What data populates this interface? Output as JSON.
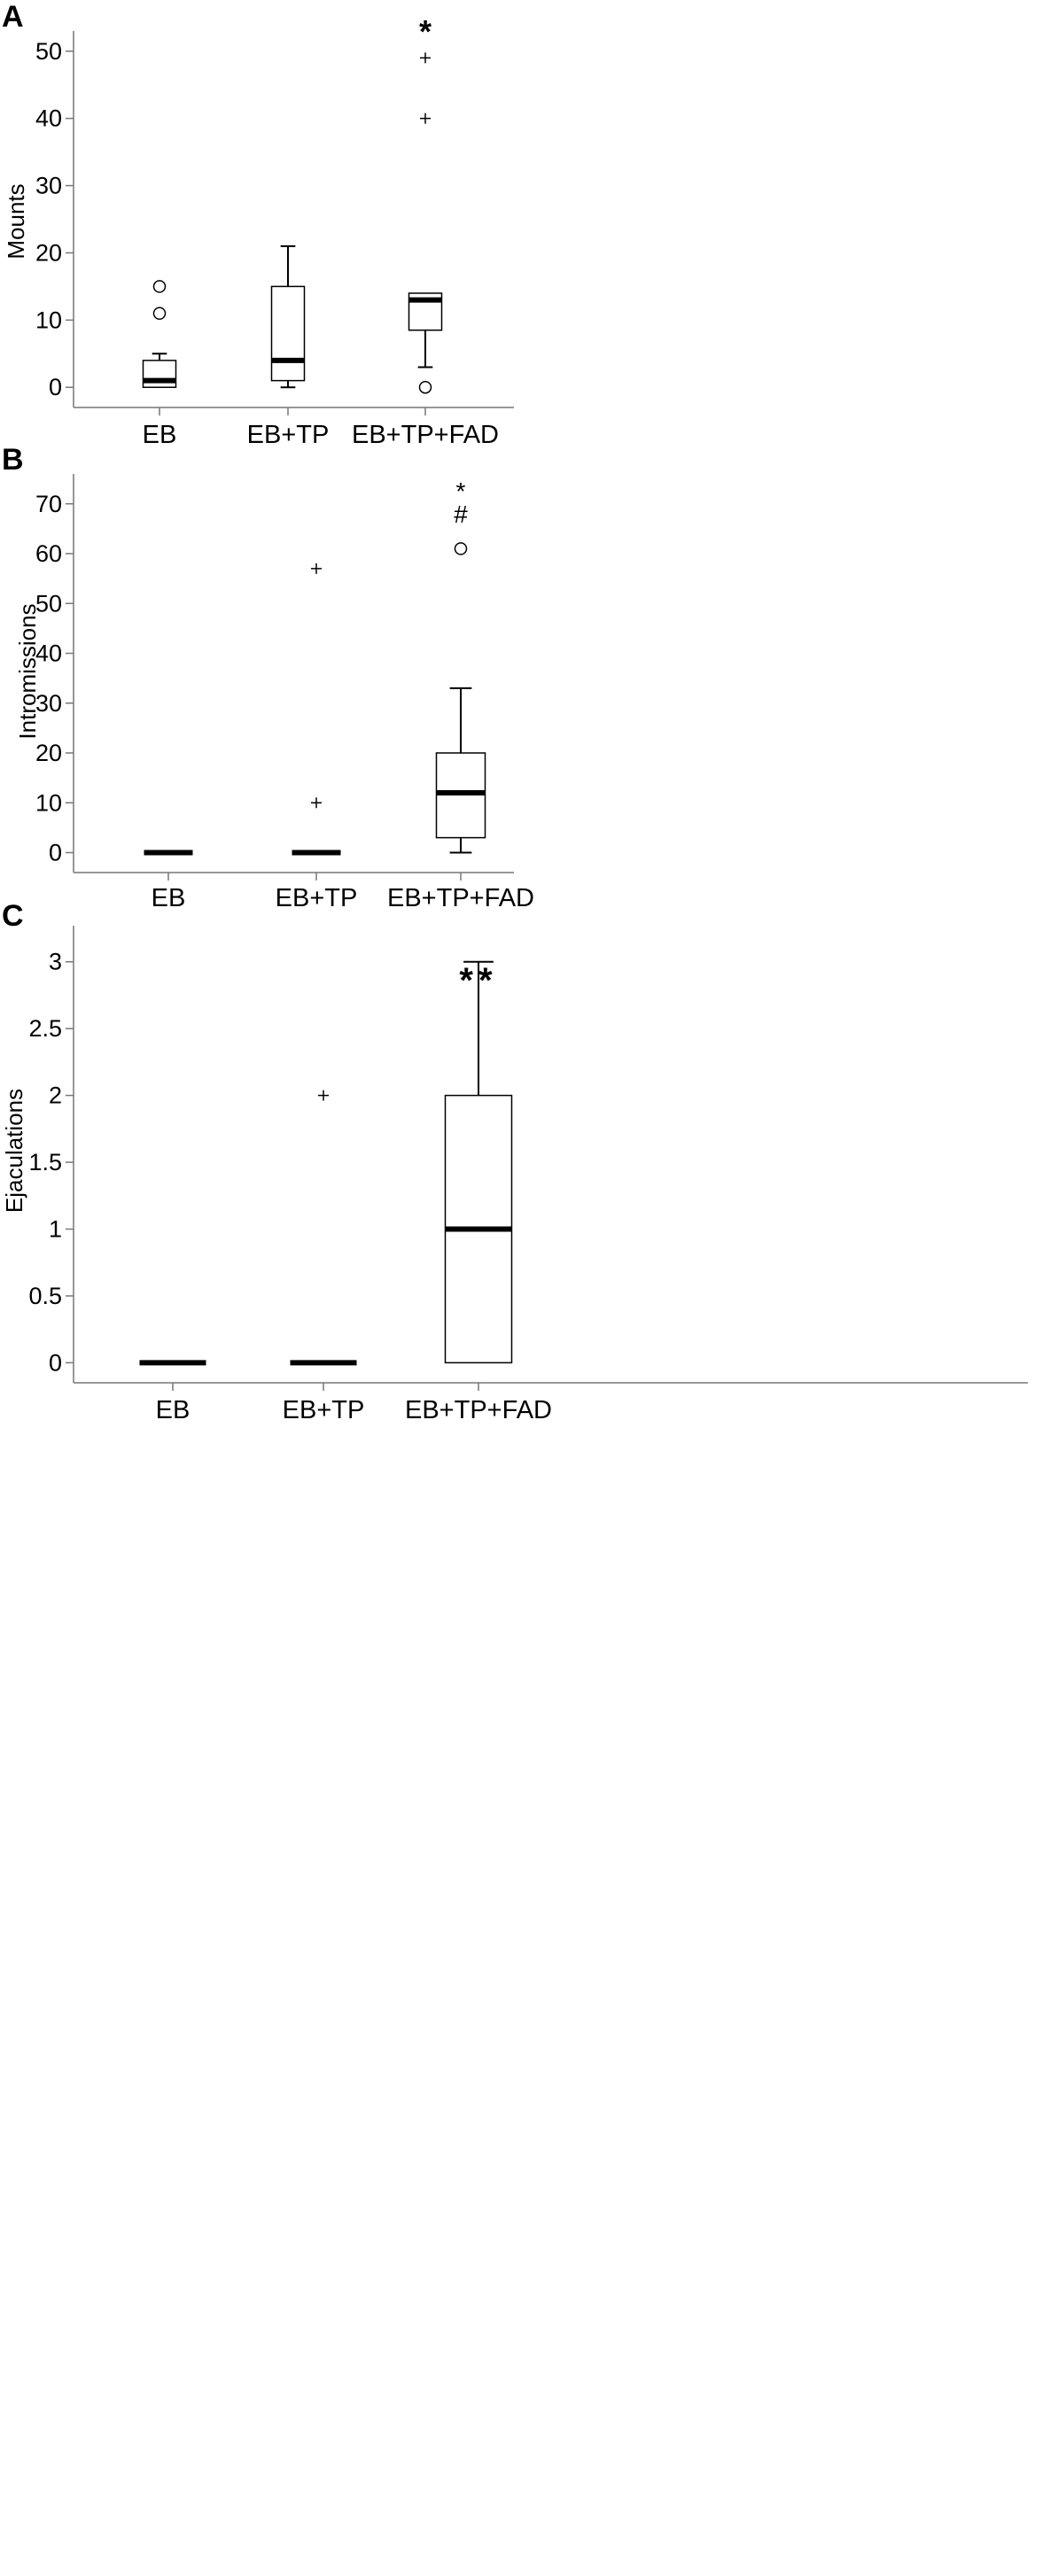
{
  "chart_data": [
    {
      "panel": "A",
      "type": "box",
      "ylabel": "Mounts",
      "ylim": [
        -3,
        53
      ],
      "yticks": [
        0,
        10,
        20,
        30,
        40,
        50
      ],
      "categories": [
        "EB",
        "EB+TP",
        "EB+TP+FAD"
      ],
      "boxes": [
        {
          "category": "EB",
          "min": 0,
          "q1": 0,
          "median": 1,
          "q3": 4,
          "max": 5,
          "outliers": [
            {
              "value": 11,
              "marker": "circle"
            },
            {
              "value": 15,
              "marker": "circle"
            }
          ]
        },
        {
          "category": "EB+TP",
          "min": 0,
          "q1": 1,
          "median": 4,
          "q3": 15,
          "max": 21,
          "outliers": []
        },
        {
          "category": "EB+TP+FAD",
          "min": 3,
          "q1": 8.5,
          "median": 13,
          "q3": 14,
          "max": 14,
          "outliers": [
            {
              "value": 0,
              "marker": "circle"
            },
            {
              "value": 40,
              "marker": "plus"
            },
            {
              "value": 49,
              "marker": "plus"
            }
          ]
        }
      ],
      "annotations": [
        {
          "category": "EB+TP+FAD",
          "lines": [
            "*"
          ]
        }
      ]
    },
    {
      "panel": "B",
      "type": "box",
      "ylabel": "Intromissions",
      "ylim": [
        -4,
        76
      ],
      "yticks": [
        0,
        10,
        20,
        30,
        40,
        50,
        60,
        70
      ],
      "categories": [
        "EB",
        "EB+TP",
        "EB+TP+FAD"
      ],
      "boxes": [
        {
          "category": "EB",
          "min": 0,
          "q1": 0,
          "median": 0,
          "q3": 0,
          "max": 0,
          "outliers": []
        },
        {
          "category": "EB+TP",
          "min": 0,
          "q1": 0,
          "median": 0,
          "q3": 0,
          "max": 0,
          "outliers": [
            {
              "value": 10,
              "marker": "plus"
            },
            {
              "value": 57,
              "marker": "plus"
            }
          ]
        },
        {
          "category": "EB+TP+FAD",
          "min": 0,
          "q1": 3,
          "median": 12,
          "q3": 20,
          "max": 33,
          "outliers": [
            {
              "value": 61,
              "marker": "circle"
            }
          ]
        }
      ],
      "annotations": [
        {
          "category": "EB+TP+FAD",
          "lines": [
            "*",
            "#"
          ]
        }
      ]
    },
    {
      "panel": "C",
      "type": "box",
      "ylabel": "Ejaculations",
      "ylim": [
        -0.15,
        3.27
      ],
      "yticks": [
        0,
        0.5,
        1,
        1.5,
        2,
        2.5,
        3
      ],
      "categories": [
        "EB",
        "EB+TP",
        "EB+TP+FAD"
      ],
      "boxes": [
        {
          "category": "EB",
          "min": 0,
          "q1": 0,
          "median": 0,
          "q3": 0,
          "max": 0,
          "outliers": []
        },
        {
          "category": "EB+TP",
          "min": 0,
          "q1": 0,
          "median": 0,
          "q3": 0,
          "max": 0,
          "outliers": [
            {
              "value": 2,
              "marker": "plus"
            }
          ]
        },
        {
          "category": "EB+TP+FAD",
          "min": 0,
          "q1": 0,
          "median": 1,
          "q3": 2,
          "max": 3,
          "outliers": []
        }
      ],
      "annotations": [
        {
          "category": "EB+TP+FAD",
          "lines": [
            "**"
          ]
        }
      ]
    }
  ]
}
